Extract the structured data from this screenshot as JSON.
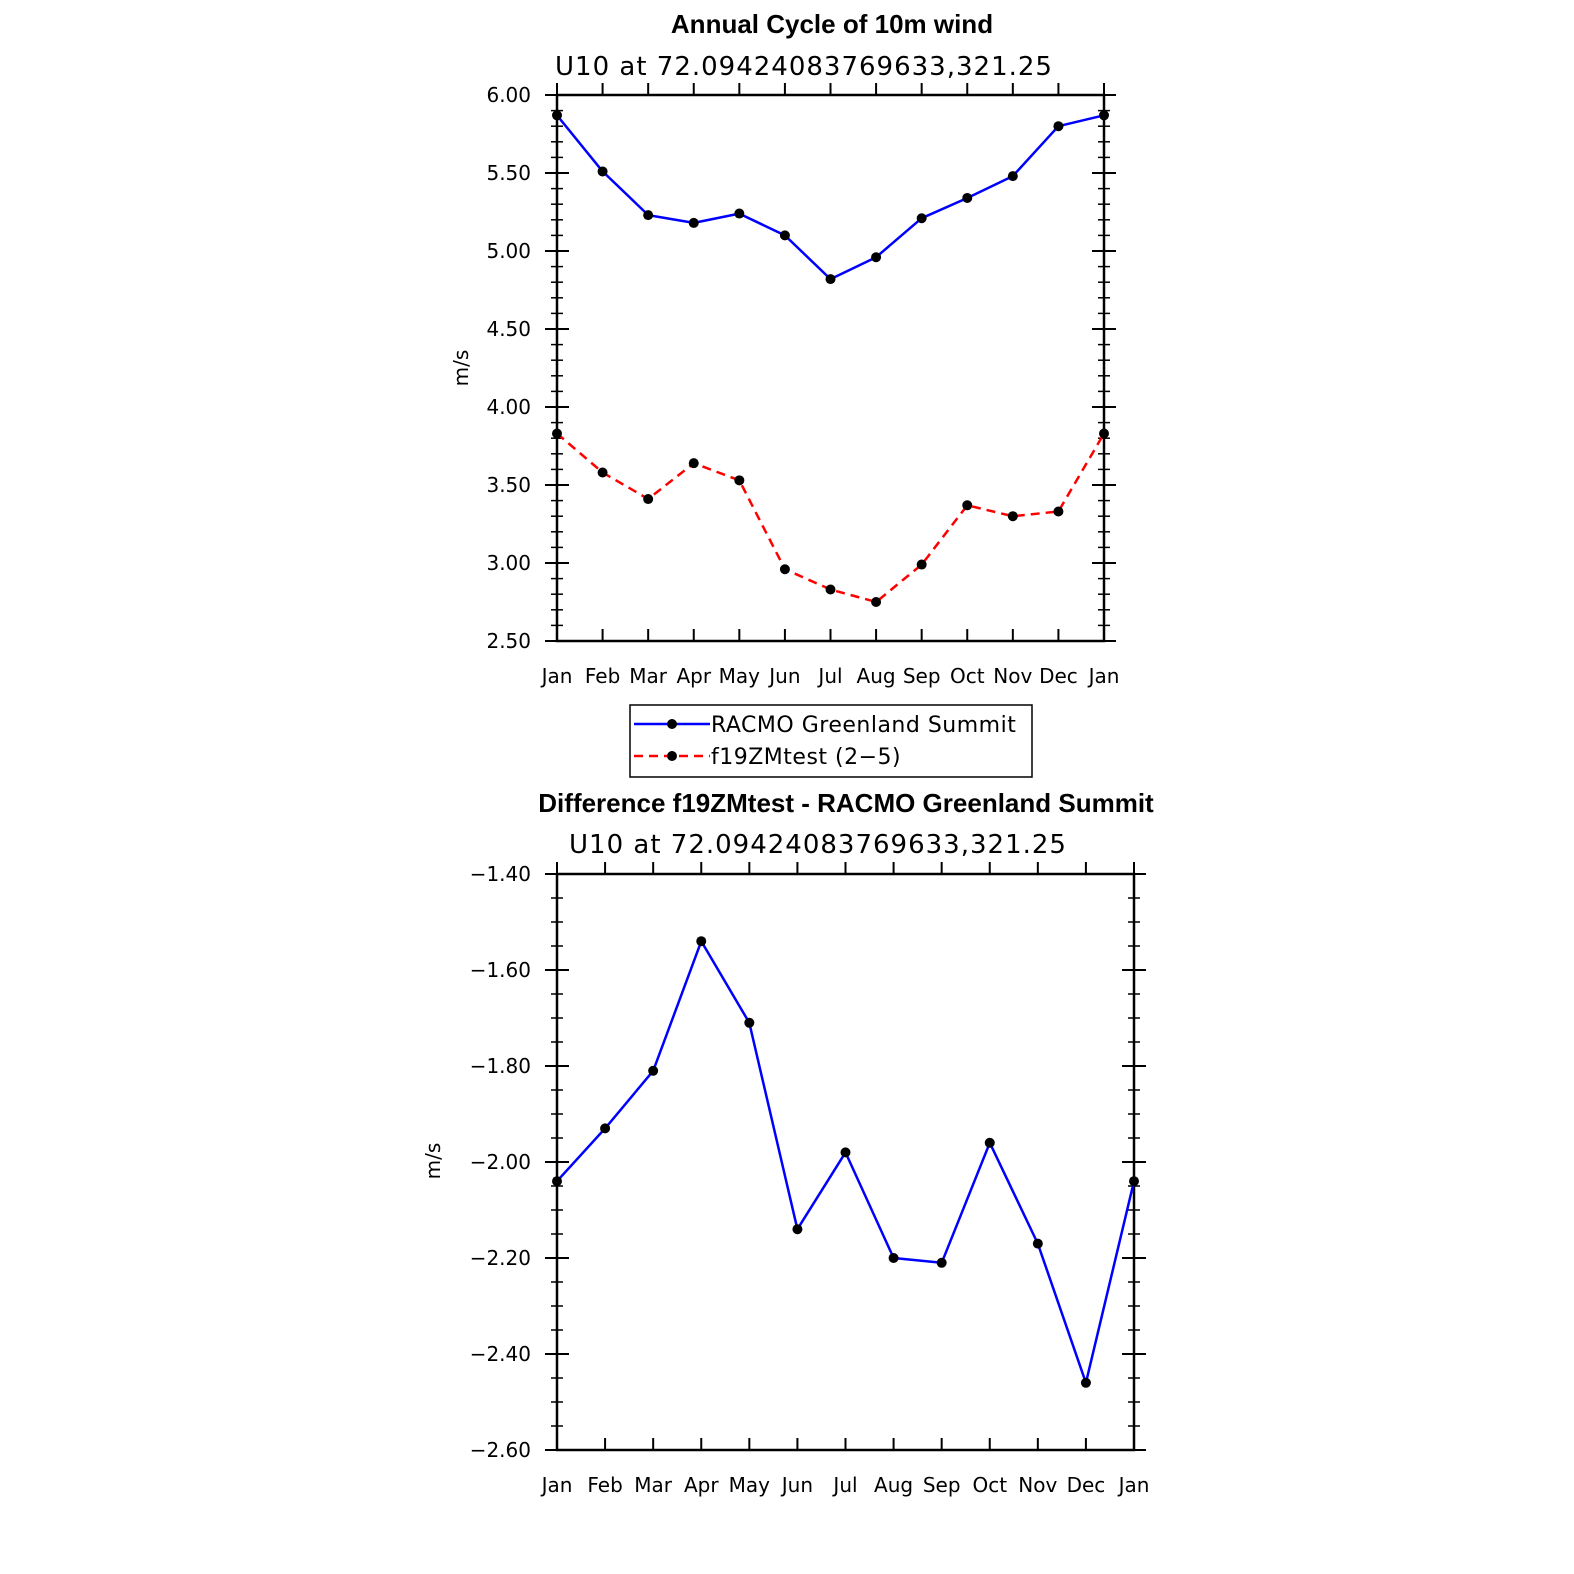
{
  "chart_data": [
    {
      "type": "line",
      "title": "Annual Cycle of 10m wind",
      "subtitle": "U10 at 72.09424083769633,321.25",
      "xlabel": "",
      "ylabel": "m/s",
      "categories": [
        "Jan",
        "Feb",
        "Mar",
        "Apr",
        "May",
        "Jun",
        "Jul",
        "Aug",
        "Sep",
        "Oct",
        "Nov",
        "Dec",
        "Jan"
      ],
      "ylim": [
        2.5,
        6.0
      ],
      "yticks": [
        "2.50",
        "3.00",
        "3.50",
        "4.00",
        "4.50",
        "5.00",
        "5.50",
        "6.00"
      ],
      "series": [
        {
          "name": "RACMO Greenland Summit",
          "color": "#0000ff",
          "style": "solid",
          "values": [
            5.87,
            5.51,
            5.23,
            5.18,
            5.24,
            5.1,
            4.82,
            4.96,
            5.21,
            5.34,
            5.48,
            5.8,
            5.87
          ]
        },
        {
          "name": "f19ZMtest (2−5)",
          "color": "#ff0000",
          "style": "dashed",
          "values": [
            3.83,
            3.58,
            3.41,
            3.64,
            3.53,
            2.96,
            2.83,
            2.75,
            2.99,
            3.37,
            3.3,
            3.33,
            3.83
          ]
        }
      ],
      "legend": "below"
    },
    {
      "type": "line",
      "title": "Difference f19ZMtest - RACMO Greenland Summit",
      "subtitle": "U10 at 72.09424083769633,321.25",
      "xlabel": "",
      "ylabel": "m/s",
      "categories": [
        "Jan",
        "Feb",
        "Mar",
        "Apr",
        "May",
        "Jun",
        "Jul",
        "Aug",
        "Sep",
        "Oct",
        "Nov",
        "Dec",
        "Jan"
      ],
      "ylim": [
        -2.6,
        -1.4
      ],
      "yticks": [
        "−2.60",
        "−2.40",
        "−2.20",
        "−2.00",
        "−1.80",
        "−1.60",
        "−1.40"
      ],
      "series": [
        {
          "name": "Difference",
          "color": "#0000ff",
          "style": "solid",
          "values": [
            -2.04,
            -1.93,
            -1.81,
            -1.54,
            -1.71,
            -2.14,
            -1.98,
            -2.2,
            -2.21,
            -1.96,
            -2.17,
            -2.46,
            -2.04
          ]
        }
      ]
    }
  ]
}
